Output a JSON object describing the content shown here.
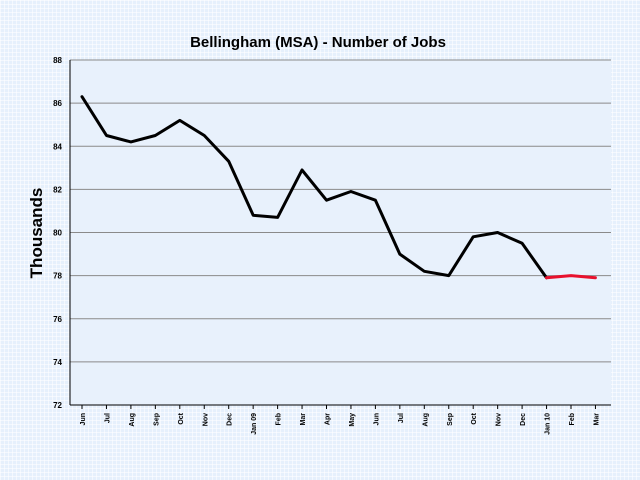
{
  "chart_data": {
    "type": "line",
    "title": "Bellingham (MSA) - Number of Jobs",
    "xlabel": "",
    "ylabel": "Thousands",
    "ylim": [
      72,
      88
    ],
    "yticks": [
      72,
      74,
      76,
      78,
      80,
      82,
      84,
      86,
      88
    ],
    "grid": true,
    "legend": "none",
    "categories": [
      "Jun",
      "Jul",
      "Aug",
      "Sep",
      "Oct",
      "Nov",
      "Dec",
      "Jan 09",
      "Feb",
      "Mar",
      "Apr",
      "May",
      "Jun",
      "Jul",
      "Aug",
      "Sep",
      "Oct",
      "Nov",
      "Dec",
      "Jan 10",
      "Feb",
      "Mar"
    ],
    "series": [
      {
        "color": "#000000",
        "values": [
          86.3,
          84.5,
          84.2,
          84.5,
          85.2,
          84.5,
          83.3,
          80.8,
          80.7,
          82.9,
          81.5,
          81.9,
          81.5,
          79.0,
          78.2,
          78.0,
          79.8,
          80.0,
          79.5,
          77.9,
          null,
          null
        ]
      },
      {
        "color": "#e8112d",
        "values": [
          null,
          null,
          null,
          null,
          null,
          null,
          null,
          null,
          null,
          null,
          null,
          null,
          null,
          null,
          null,
          null,
          null,
          null,
          null,
          77.9,
          78.0,
          77.9
        ]
      }
    ]
  }
}
